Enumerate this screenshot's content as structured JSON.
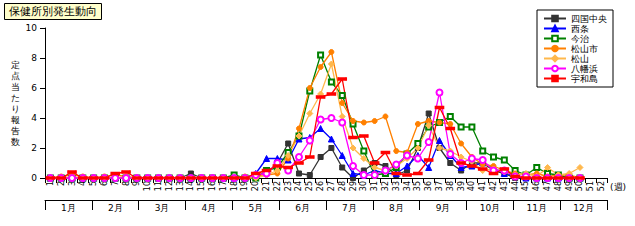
{
  "chart_data": {
    "type": "line",
    "title": "保健所別発生動向",
    "y_label": "定点当たり報告数",
    "x_label": "(週)",
    "categories": [
      "1",
      "2",
      "3",
      "4",
      "5",
      "6",
      "7",
      "8",
      "9",
      "10",
      "11",
      "12",
      "13",
      "14",
      "15",
      "16",
      "17",
      "18",
      "19",
      "20",
      "21",
      "22",
      "23",
      "24",
      "25",
      "26",
      "27",
      "28",
      "29",
      "30",
      "31",
      "32",
      "33",
      "34",
      "35",
      "36",
      "37",
      "38",
      "39",
      "40",
      "41",
      "42",
      "43",
      "44",
      "45",
      "46",
      "47",
      "48",
      "49",
      "50",
      "51",
      "52"
    ],
    "month_labels": [
      "1月",
      "2月",
      "3月",
      "4月",
      "5月",
      "6月",
      "7月",
      "8月",
      "9月",
      "10月",
      "11月",
      "12月"
    ],
    "ylim": [
      0,
      10
    ],
    "yticks": [
      0,
      2,
      4,
      6,
      8,
      10
    ],
    "grid": false,
    "legend": "upper right",
    "series": [
      {
        "name": "四国中央",
        "color": "#333333",
        "marker": "square",
        "values": [
          0,
          0,
          0,
          0,
          0,
          0,
          0,
          0,
          0,
          0,
          0,
          0,
          0,
          0.3,
          0,
          0,
          0,
          0,
          0,
          0,
          0.3,
          1.0,
          2.3,
          0.3,
          0.2,
          1.4,
          2.0,
          0.7,
          0,
          0.5,
          1.0,
          0.8,
          0.2,
          0.5,
          2.0,
          4.3,
          2.0,
          1.0,
          0.5,
          1.0,
          1.0,
          0.5,
          0.3,
          0,
          0,
          0,
          0,
          0,
          0,
          0,
          null,
          null
        ]
      },
      {
        "name": "西条",
        "color": "#0000ff",
        "marker": "triangle",
        "values": [
          0,
          0,
          0,
          0,
          0,
          0,
          0,
          0,
          0,
          0,
          0,
          0,
          0,
          0,
          0,
          0,
          0,
          0,
          0,
          0.3,
          1.3,
          1.3,
          1.2,
          2.6,
          2.7,
          3.3,
          2.6,
          1.5,
          0.3,
          0.2,
          0.5,
          0.3,
          0.3,
          0.8,
          1.5,
          0.7,
          2.5,
          1.5,
          0.7,
          0.8,
          1.0,
          0.7,
          0.3,
          0.2,
          0,
          0,
          0,
          0,
          0,
          0,
          null,
          null
        ]
      },
      {
        "name": "今治",
        "color": "#008000",
        "marker": "open_square",
        "values": [
          0,
          0,
          0,
          0,
          0,
          0,
          0,
          0,
          0,
          0,
          0,
          0,
          0,
          0,
          0,
          0,
          0,
          0.2,
          0,
          0,
          0.5,
          0.7,
          1.7,
          2.8,
          5.8,
          8.2,
          6.4,
          5.5,
          3.6,
          1.8,
          0.2,
          0.3,
          0.7,
          1.6,
          2.3,
          3.4,
          3.7,
          4.1,
          3.4,
          3.4,
          1.8,
          1.4,
          1.2,
          0.5,
          0.2,
          0.7,
          0.3,
          0.2,
          0,
          0,
          null,
          null
        ]
      },
      {
        "name": "松山市",
        "color": "#ff8000",
        "marker": "circle",
        "values": [
          0,
          0.1,
          0.2,
          0.1,
          0,
          0.1,
          0.2,
          0.1,
          0,
          0,
          0,
          0,
          0,
          0,
          0,
          0,
          0,
          0,
          0.1,
          0.1,
          0.2,
          0.3,
          1.3,
          3.3,
          6.0,
          7.4,
          8.4,
          5.0,
          3.8,
          3.7,
          3.8,
          4.1,
          1.8,
          1.7,
          3.6,
          3.8,
          3.7,
          3.6,
          2.3,
          1.4,
          0.9,
          0.8,
          0.5,
          0.3,
          0.2,
          0.3,
          0.1,
          0.2,
          0.2,
          0,
          null,
          null
        ]
      },
      {
        "name": "松山",
        "color": "#ffb84d",
        "marker": "diamond",
        "values": [
          0,
          0,
          0,
          0,
          0,
          0,
          0,
          0,
          0,
          0,
          0,
          0,
          0,
          0,
          0,
          0,
          0,
          0,
          0,
          0,
          0.2,
          0.5,
          1.5,
          2.8,
          4.3,
          5.6,
          7.6,
          4.1,
          2.0,
          1.3,
          0.7,
          0.5,
          0.8,
          1.3,
          2.0,
          3.5,
          2.0,
          1.8,
          1.4,
          1.1,
          0.5,
          0.6,
          0.4,
          0.2,
          0.3,
          0.1,
          0.7,
          0.2,
          0.3,
          0.7,
          null,
          null
        ]
      },
      {
        "name": "八幡浜",
        "color": "#ff00ff",
        "marker": "open_circle",
        "values": [
          0,
          0,
          0,
          0,
          0,
          0,
          0,
          0,
          0,
          0,
          0,
          0,
          0,
          0,
          0,
          0,
          0,
          0,
          0,
          0.2,
          0.3,
          1.0,
          0.5,
          1.4,
          2.5,
          3.9,
          4.0,
          3.7,
          0.8,
          0.2,
          0.2,
          0.5,
          0.9,
          1.5,
          1.3,
          2.4,
          5.7,
          1.6,
          1.0,
          1.3,
          1.2,
          0.5,
          0.5,
          0.1,
          0.1,
          0,
          0,
          0,
          0,
          0,
          null,
          null
        ]
      },
      {
        "name": "宇和島",
        "color": "#ff0000",
        "marker": "dash",
        "values": [
          0,
          0,
          0.4,
          0,
          0,
          0,
          0.3,
          0.4,
          0,
          0,
          0,
          0,
          0,
          0,
          0,
          0,
          0,
          0,
          0,
          0.3,
          0.5,
          0.8,
          0.7,
          1.0,
          1.4,
          5.4,
          5.6,
          6.6,
          2.7,
          2.8,
          1.0,
          1.7,
          0.3,
          0.2,
          0.3,
          1.2,
          4.7,
          3.3,
          1.0,
          0.8,
          0.6,
          0.3,
          0.6,
          0.1,
          0,
          0,
          0,
          0,
          0,
          0,
          null,
          null
        ]
      }
    ]
  }
}
